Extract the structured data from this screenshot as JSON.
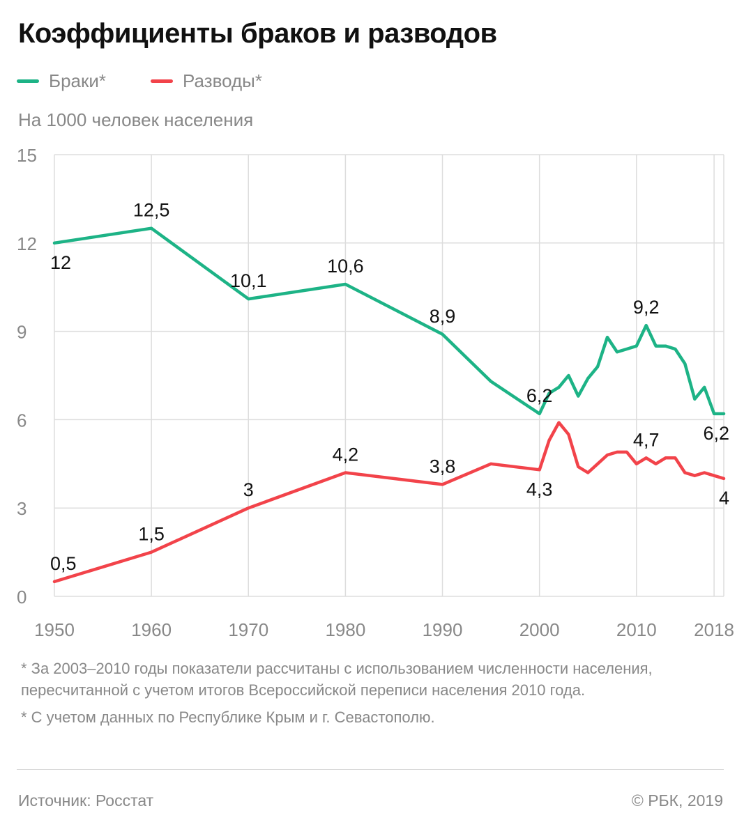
{
  "title": "Коэффициенты браков и разводов",
  "subtitle": "На 1000 человек населения",
  "legend": {
    "marriages": "Браки*",
    "divorces": "Разводы*"
  },
  "colors": {
    "marriages": "#1db386",
    "divorces": "#f2434a",
    "grid": "#dddddd",
    "text": "#888888",
    "label": "#111111"
  },
  "chart_data": {
    "type": "line",
    "title": "Коэффициенты браков и разводов",
    "ylabel": "На 1000 человек населения",
    "xlabel": "",
    "xlim": [
      1950,
      2019
    ],
    "ylim": [
      0,
      15
    ],
    "y_ticks": [
      0,
      3,
      6,
      9,
      12,
      15
    ],
    "y_tick_labels": [
      "0",
      "3",
      "6",
      "9",
      "12",
      "15"
    ],
    "x_ticks": [
      1950,
      1960,
      1970,
      1980,
      1990,
      2000,
      2010,
      2018
    ],
    "x_tick_labels": [
      "1950",
      "1960",
      "1970",
      "1980",
      "1990",
      "2000",
      "2010",
      "2018"
    ],
    "grid": true,
    "series": [
      {
        "name": "Браки*",
        "color": "#1db386",
        "x": [
          1950,
          1960,
          1970,
          1980,
          1990,
          1995,
          2000,
          2001,
          2002,
          2003,
          2004,
          2005,
          2006,
          2007,
          2008,
          2009,
          2010,
          2011,
          2012,
          2013,
          2014,
          2015,
          2016,
          2017,
          2018,
          2019
        ],
        "y": [
          12,
          12.5,
          10.1,
          10.6,
          8.9,
          7.3,
          6.2,
          6.9,
          7.1,
          7.5,
          6.8,
          7.4,
          7.8,
          8.8,
          8.3,
          8.4,
          8.5,
          9.2,
          8.5,
          8.5,
          8.4,
          7.9,
          6.7,
          7.1,
          6.2,
          6.2
        ],
        "labels": [
          {
            "x": 1950,
            "y": 12,
            "text": "12",
            "pos": "below"
          },
          {
            "x": 1960,
            "y": 12.5,
            "text": "12,5",
            "pos": "above"
          },
          {
            "x": 1970,
            "y": 10.1,
            "text": "10,1",
            "pos": "above"
          },
          {
            "x": 1980,
            "y": 10.6,
            "text": "10,6",
            "pos": "above"
          },
          {
            "x": 1990,
            "y": 8.9,
            "text": "8,9",
            "pos": "above"
          },
          {
            "x": 2000,
            "y": 6.2,
            "text": "6,2",
            "pos": "above"
          },
          {
            "x": 2011,
            "y": 9.2,
            "text": "9,2",
            "pos": "above"
          },
          {
            "x": 2019,
            "y": 6.2,
            "text": "6,2",
            "pos": "below"
          }
        ]
      },
      {
        "name": "Разводы*",
        "color": "#f2434a",
        "x": [
          1950,
          1960,
          1970,
          1980,
          1990,
          1995,
          2000,
          2001,
          2002,
          2003,
          2004,
          2005,
          2006,
          2007,
          2008,
          2009,
          2010,
          2011,
          2012,
          2013,
          2014,
          2015,
          2016,
          2017,
          2018,
          2019
        ],
        "y": [
          0.5,
          1.5,
          3,
          4.2,
          3.8,
          4.5,
          4.3,
          5.3,
          5.9,
          5.5,
          4.4,
          4.2,
          4.5,
          4.8,
          4.9,
          4.9,
          4.5,
          4.7,
          4.5,
          4.7,
          4.7,
          4.2,
          4.1,
          4.2,
          4.1,
          4.0
        ],
        "labels": [
          {
            "x": 1950,
            "y": 0.5,
            "text": "0,5",
            "pos": "above"
          },
          {
            "x": 1960,
            "y": 1.5,
            "text": "1,5",
            "pos": "above"
          },
          {
            "x": 1970,
            "y": 3,
            "text": "3",
            "pos": "above"
          },
          {
            "x": 1980,
            "y": 4.2,
            "text": "4,2",
            "pos": "above"
          },
          {
            "x": 1990,
            "y": 3.8,
            "text": "3,8",
            "pos": "above"
          },
          {
            "x": 2000,
            "y": 4.3,
            "text": "4,3",
            "pos": "below"
          },
          {
            "x": 2011,
            "y": 4.7,
            "text": "4,7",
            "pos": "above"
          },
          {
            "x": 2019,
            "y": 4.0,
            "text": "4",
            "pos": "below"
          }
        ]
      }
    ]
  },
  "notes": [
    "* За 2003–2010 годы показатели рассчитаны с использованием численности населения, пересчитанной с учетом итогов Всероссийской переписи населения 2010 года.",
    "* С учетом данных по Республике Крым и г. Севастополю."
  ],
  "source": "Источник: Росстат",
  "copyright": "© РБК, 2019"
}
